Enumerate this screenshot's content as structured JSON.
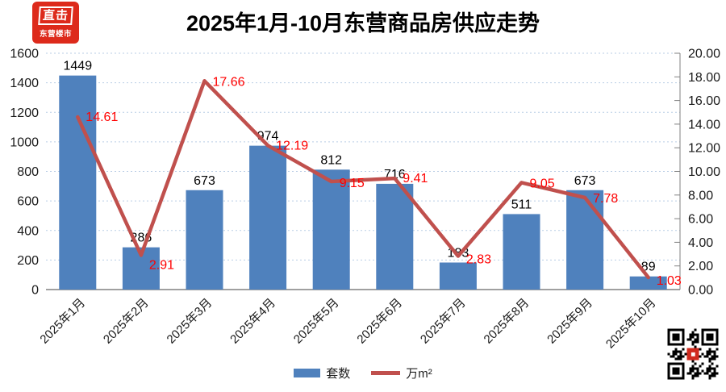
{
  "header": {
    "title": "2025年1月-10月东营商品房供应走势",
    "logo_line1": "直击",
    "logo_line2": "东营楼市"
  },
  "legend": {
    "bar_label": "套数",
    "line_label": "万m²"
  },
  "colors": {
    "bar": "#4F81BD",
    "line": "#C0504D",
    "line_label": "#FF0000",
    "bar_label": "#000000",
    "gridline": "#B9CDE5",
    "axis": "#808080",
    "logo_red": "#dd2a1b"
  },
  "chart_data": {
    "type": "bar+line",
    "title": "2025年1月-10月东营商品房供应走势",
    "categories": [
      "2025年1月",
      "2025年2月",
      "2025年3月",
      "2025年4月",
      "2025年5月",
      "2025年6月",
      "2025年7月",
      "2025年8月",
      "2025年9月",
      "2025年10月"
    ],
    "series": [
      {
        "name": "套数",
        "type": "bar",
        "axis": "left",
        "values": [
          1449,
          286,
          673,
          974,
          812,
          716,
          183,
          511,
          673,
          89
        ]
      },
      {
        "name": "万m²",
        "type": "line",
        "axis": "right",
        "values": [
          14.61,
          2.91,
          17.66,
          12.19,
          9.15,
          9.41,
          2.83,
          9.05,
          7.78,
          1.03
        ]
      }
    ],
    "left_axis": {
      "min": 0,
      "max": 1600,
      "step": 200,
      "tick_labels": [
        "0",
        "200",
        "400",
        "600",
        "800",
        "1000",
        "1200",
        "1400",
        "1600"
      ]
    },
    "right_axis": {
      "min": 0,
      "max": 20,
      "step": 2,
      "tick_labels": [
        "0.00",
        "2.00",
        "4.00",
        "6.00",
        "8.00",
        "10.00",
        "12.00",
        "14.00",
        "16.00",
        "18.00",
        "20.00"
      ]
    },
    "grid": true,
    "legend_position": "bottom",
    "x_label_rotation": -45
  }
}
